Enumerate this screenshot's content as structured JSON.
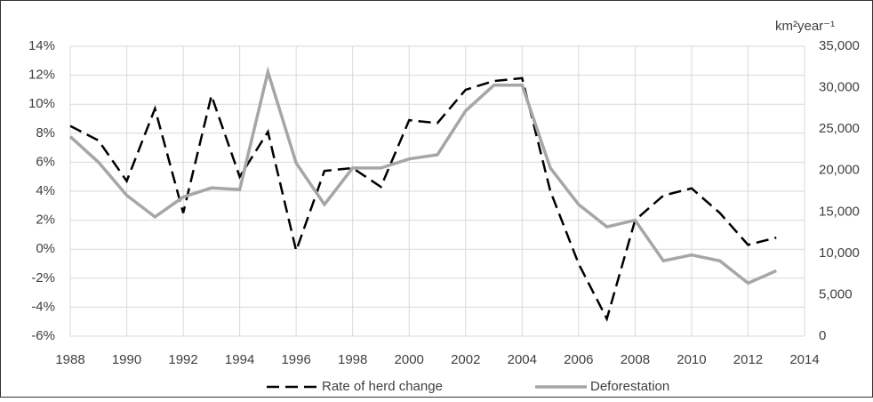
{
  "chart_data": {
    "type": "line",
    "y2_label": "km²year⁻¹",
    "x": [
      1988,
      1989,
      1990,
      1991,
      1992,
      1993,
      1994,
      1995,
      1996,
      1997,
      1998,
      1999,
      2000,
      2001,
      2002,
      2003,
      2004,
      2005,
      2006,
      2007,
      2008,
      2009,
      2010,
      2011,
      2012,
      2013
    ],
    "series": [
      {
        "name": "Rate of herd change",
        "color": "#000000",
        "dash": true,
        "values": [
          8.5,
          7.5,
          4.7,
          9.7,
          2.5,
          10.6,
          5.0,
          8.1,
          -0.1,
          5.4,
          5.6,
          4.3,
          8.9,
          8.7,
          11.0,
          11.6,
          11.8,
          4.0,
          -1.0,
          -4.8,
          2.0,
          3.7,
          4.2,
          2.5,
          0.3,
          0.8
        ]
      },
      {
        "name": "Deforestation",
        "color": "#a6a6a6",
        "axis": "y2",
        "values": [
          24100,
          21000,
          17000,
          14400,
          16800,
          17900,
          17700,
          31900,
          20900,
          15900,
          20300,
          20300,
          21400,
          21900,
          27200,
          30300,
          30300,
          20300,
          15900,
          13200,
          14000,
          9100,
          9800,
          9100,
          6400,
          7900
        ]
      }
    ],
    "xlim": [
      1988,
      2014
    ],
    "xticks": [
      1988,
      1990,
      1992,
      1994,
      1996,
      1998,
      2000,
      2002,
      2004,
      2006,
      2008,
      2010,
      2012,
      2014
    ],
    "ylim": [
      -6,
      14
    ],
    "yticks": [
      {
        "value": -6,
        "label": "-6%"
      },
      {
        "value": -4,
        "label": "-4%"
      },
      {
        "value": -2,
        "label": "-2%"
      },
      {
        "value": 0,
        "label": "0%"
      },
      {
        "value": 2,
        "label": "2%"
      },
      {
        "value": 4,
        "label": "4%"
      },
      {
        "value": 6,
        "label": "6%"
      },
      {
        "value": 8,
        "label": "8%"
      },
      {
        "value": 10,
        "label": "10%"
      },
      {
        "value": 12,
        "label": "12%"
      },
      {
        "value": 14,
        "label": "14%"
      }
    ],
    "y2lim": [
      0,
      35000
    ],
    "y2ticks": [
      0,
      {
        "value": 5000,
        "label": "5,000"
      },
      {
        "value": 10000,
        "label": "10,000"
      },
      {
        "value": 15000,
        "label": "15,000"
      },
      {
        "value": 20000,
        "label": "20,000"
      },
      {
        "value": 25000,
        "label": "25,000"
      },
      {
        "value": 30000,
        "label": "30,000"
      },
      {
        "value": 35000,
        "label": "35,000"
      }
    ],
    "grid": true,
    "legend": "bottom"
  }
}
